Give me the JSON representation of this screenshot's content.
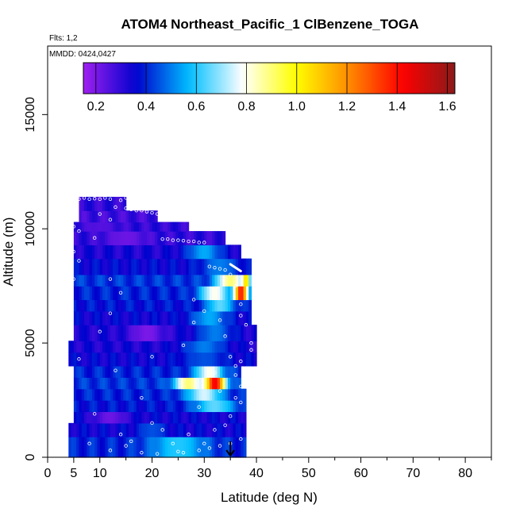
{
  "chart_data": {
    "type": "heatmap",
    "title": "ATOM4 Northeast_Pacific_1 ClBenzene_TOGA",
    "subtitle_flights": "Flts: 1,2",
    "subtitle_dates": "MMDD: 0424,0427",
    "xlabel": "Latitude (deg N)",
    "ylabel": "Altitude (m)",
    "xlim": [
      0,
      85
    ],
    "ylim": [
      0,
      18000
    ],
    "x_ticks": [
      0,
      5,
      10,
      20,
      30,
      40,
      50,
      60,
      70,
      80
    ],
    "y_ticks": [
      0,
      5000,
      10000,
      15000
    ],
    "x_tick_labels": [
      "0",
      "5",
      "10",
      "20",
      "30",
      "40",
      "50",
      "60",
      "70",
      "80"
    ],
    "y_tick_labels": [
      "0",
      "5000",
      "10000",
      "15000"
    ],
    "colorbar": {
      "range": [
        0.15,
        1.63
      ],
      "ticks": [
        0.2,
        0.4,
        0.6,
        0.8,
        1.0,
        1.2,
        1.4,
        1.6
      ],
      "tick_labels": [
        "0.2",
        "0.4",
        "0.6",
        "0.8",
        "1.0",
        "1.2",
        "1.4",
        "1.6"
      ],
      "colors": [
        "#a020f0",
        "#0000cd",
        "#00bfff",
        "#ffffff",
        "#ffff00",
        "#ff8c00",
        "#ff0000",
        "#8b1a1a"
      ]
    },
    "arrow_marker": {
      "x": 35,
      "y_top": 700,
      "y_bottom": 0
    },
    "bands": [
      {
        "y0": 0,
        "y1": 900,
        "x0": 4,
        "x1": 38,
        "base": 0.4,
        "features": [
          {
            "x": 25,
            "w": 8,
            "v": 0.6
          }
        ]
      },
      {
        "y0": 900,
        "y1": 1500,
        "x0": 4,
        "x1": 38,
        "base": 0.35,
        "features": [
          {
            "x": 20,
            "w": 4,
            "v": 0.45
          }
        ]
      },
      {
        "y0": 1500,
        "y1": 2000,
        "x0": 5,
        "x1": 38,
        "base": 0.35,
        "features": [
          {
            "x": 12,
            "w": 5,
            "v": 0.22
          }
        ]
      },
      {
        "y0": 2000,
        "y1": 2500,
        "x0": 5,
        "x1": 38,
        "base": 0.38,
        "features": [
          {
            "x": 32,
            "w": 6,
            "v": 0.65
          }
        ]
      },
      {
        "y0": 2500,
        "y1": 3000,
        "x0": 5,
        "x1": 38,
        "base": 0.4,
        "features": [
          {
            "x": 30,
            "w": 5,
            "v": 0.75
          }
        ]
      },
      {
        "y0": 3000,
        "y1": 3500,
        "x0": 5,
        "x1": 37,
        "base": 0.42,
        "features": [
          {
            "x": 32,
            "w": 3,
            "v": 1.45
          },
          {
            "x": 27,
            "w": 4,
            "v": 0.9
          }
        ]
      },
      {
        "y0": 3500,
        "y1": 4000,
        "x0": 5,
        "x1": 37,
        "base": 0.4,
        "features": [
          {
            "x": 31,
            "w": 4,
            "v": 0.8
          }
        ]
      },
      {
        "y0": 4000,
        "y1": 4600,
        "x0": 4,
        "x1": 40,
        "base": 0.35,
        "features": [
          {
            "x": 30,
            "w": 6,
            "v": 0.45
          }
        ]
      },
      {
        "y0": 4600,
        "y1": 5100,
        "x0": 4,
        "x1": 40,
        "base": 0.33,
        "features": [
          {
            "x": 30,
            "w": 6,
            "v": 0.5
          }
        ]
      },
      {
        "y0": 5100,
        "y1": 5800,
        "x0": 5,
        "x1": 40,
        "base": 0.33,
        "features": [
          {
            "x": 19,
            "w": 5,
            "v": 0.2
          },
          {
            "x": 32,
            "w": 5,
            "v": 0.5
          }
        ]
      },
      {
        "y0": 5800,
        "y1": 6400,
        "x0": 5,
        "x1": 39,
        "base": 0.35,
        "features": [
          {
            "x": 31,
            "w": 5,
            "v": 0.55
          }
        ]
      },
      {
        "y0": 6400,
        "y1": 6900,
        "x0": 5,
        "x1": 39,
        "base": 0.38,
        "features": [
          {
            "x": 33,
            "w": 4,
            "v": 0.65
          }
        ]
      },
      {
        "y0": 6900,
        "y1": 7500,
        "x0": 5,
        "x1": 39,
        "base": 0.4,
        "features": [
          {
            "x": 37,
            "w": 2,
            "v": 1.4
          },
          {
            "x": 32,
            "w": 4,
            "v": 0.8
          }
        ]
      },
      {
        "y0": 7500,
        "y1": 8000,
        "x0": 5,
        "x1": 39,
        "base": 0.42,
        "features": [
          {
            "x": 35,
            "w": 4,
            "v": 0.9
          },
          {
            "x": 38,
            "w": 1,
            "v": 1.1
          }
        ]
      },
      {
        "y0": 8000,
        "y1": 8700,
        "x0": 5,
        "x1": 39,
        "base": 0.36,
        "features": [
          {
            "x": 33,
            "w": 5,
            "v": 0.5
          }
        ]
      },
      {
        "y0": 8700,
        "y1": 9300,
        "x0": 5,
        "x1": 37,
        "base": 0.33,
        "features": [
          {
            "x": 30,
            "w": 5,
            "v": 0.55
          }
        ]
      },
      {
        "y0": 9300,
        "y1": 9900,
        "x0": 5,
        "x1": 34,
        "base": 0.3,
        "features": [
          {
            "x": 15,
            "w": 6,
            "v": 0.22
          }
        ]
      },
      {
        "y0": 9900,
        "y1": 10300,
        "x0": 5,
        "x1": 27,
        "base": 0.3,
        "features": [
          {
            "x": 10,
            "w": 5,
            "v": 0.25
          }
        ]
      },
      {
        "y0": 10300,
        "y1": 10800,
        "x0": 6,
        "x1": 21,
        "base": 0.28,
        "features": []
      },
      {
        "y0": 10800,
        "y1": 11400,
        "x0": 6,
        "x1": 15,
        "base": 0.3,
        "features": []
      }
    ],
    "points": [
      [
        5,
        11400
      ],
      [
        6,
        11300
      ],
      [
        7,
        11350
      ],
      [
        8,
        11300
      ],
      [
        9,
        11320
      ],
      [
        10,
        11300
      ],
      [
        11,
        11350
      ],
      [
        12,
        11300
      ],
      [
        14,
        11250
      ],
      [
        15,
        11350
      ],
      [
        13,
        10950
      ],
      [
        15,
        10900
      ],
      [
        16,
        10850
      ],
      [
        17,
        10800
      ],
      [
        18,
        10800
      ],
      [
        19,
        10750
      ],
      [
        20,
        10700
      ],
      [
        21,
        10650
      ],
      [
        10,
        10650
      ],
      [
        12,
        10400
      ],
      [
        22,
        9550
      ],
      [
        23,
        9550
      ],
      [
        24,
        9500
      ],
      [
        25,
        9500
      ],
      [
        26,
        9480
      ],
      [
        27,
        9450
      ],
      [
        28,
        9450
      ],
      [
        29,
        9400
      ],
      [
        30,
        9400
      ],
      [
        31,
        8350
      ],
      [
        32,
        8300
      ],
      [
        33,
        8250
      ],
      [
        34,
        8200
      ],
      [
        5,
        10100
      ],
      [
        6,
        9900
      ],
      [
        9,
        9600
      ],
      [
        5,
        9000
      ],
      [
        6,
        8600
      ],
      [
        5,
        7800
      ],
      [
        12,
        7800
      ],
      [
        14,
        7200
      ],
      [
        28,
        6900
      ],
      [
        30,
        6400
      ],
      [
        33,
        6000
      ],
      [
        37,
        6200
      ],
      [
        36,
        7500
      ],
      [
        35,
        8000
      ],
      [
        37,
        6700
      ],
      [
        38,
        5800
      ],
      [
        39,
        5000
      ],
      [
        39,
        4700
      ],
      [
        37,
        4200
      ],
      [
        36,
        4000
      ],
      [
        38,
        3400
      ],
      [
        32,
        3700
      ],
      [
        36,
        2600
      ],
      [
        37,
        2400
      ],
      [
        35,
        1800
      ],
      [
        34,
        1400
      ],
      [
        32,
        1200
      ],
      [
        22,
        1200
      ],
      [
        14,
        1000
      ],
      [
        16,
        700
      ],
      [
        30,
        600
      ],
      [
        12,
        300
      ],
      [
        18,
        200
      ],
      [
        21,
        150
      ],
      [
        25,
        250
      ],
      [
        26,
        200
      ],
      [
        29,
        300
      ],
      [
        31,
        400
      ],
      [
        33,
        500
      ],
      [
        35,
        600
      ],
      [
        37,
        800
      ],
      [
        10,
        5500
      ],
      [
        13,
        3800
      ],
      [
        20,
        4400
      ],
      [
        18,
        2600
      ],
      [
        20,
        1500
      ],
      [
        6,
        4300
      ],
      [
        9,
        1900
      ],
      [
        12,
        6300
      ],
      [
        26,
        4900
      ],
      [
        28,
        5900
      ],
      [
        34,
        5300
      ],
      [
        35,
        4400
      ],
      [
        37,
        3100
      ],
      [
        33,
        2900
      ],
      [
        36,
        3600
      ],
      [
        29,
        2200
      ],
      [
        27,
        1000
      ],
      [
        24,
        600
      ],
      [
        15,
        500
      ],
      [
        8,
        600
      ]
    ],
    "tail_segment": {
      "x0": 35,
      "y0": 8450,
      "x1": 37,
      "y1": 8150
    }
  }
}
